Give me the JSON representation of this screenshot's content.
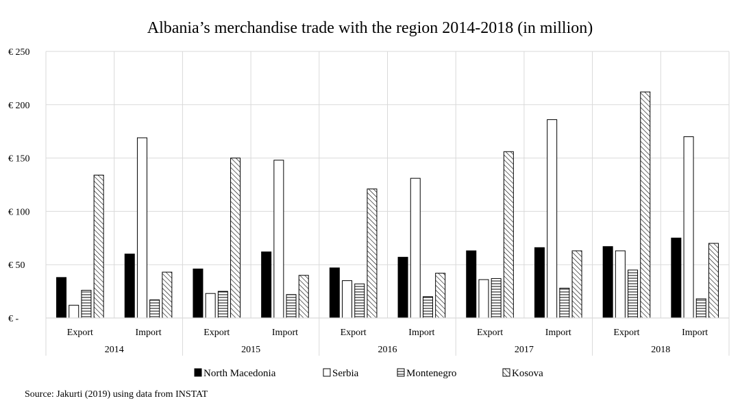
{
  "chart_data": {
    "type": "bar",
    "title": "Albania’s merchandise trade with the region 2014-2018 (in million)",
    "y_ticks": [
      "€ -",
      "€ 50",
      "€ 100",
      "€ 150",
      "€ 200",
      "€ 250"
    ],
    "ylim": [
      0,
      250
    ],
    "grid": true,
    "legend_position": "bottom",
    "groups": [
      "2014",
      "2015",
      "2016",
      "2017",
      "2018"
    ],
    "subcategories": [
      "Export",
      "Import"
    ],
    "categories": [
      "2014 Export",
      "2014 Import",
      "2015 Export",
      "2015 Import",
      "2016 Export",
      "2016 Import",
      "2017 Export",
      "2017 Import",
      "2018 Export",
      "2018 Import"
    ],
    "series": [
      {
        "name": "North Macedonia",
        "pattern": "solid",
        "values": [
          38,
          60,
          46,
          62,
          47,
          57,
          63,
          66,
          67,
          75
        ]
      },
      {
        "name": "Serbia",
        "pattern": "empty",
        "values": [
          12,
          169,
          23,
          148,
          35,
          131,
          36,
          186,
          63,
          170
        ]
      },
      {
        "name": "Montenegro",
        "pattern": "horizontal-lines",
        "values": [
          26,
          17,
          25,
          22,
          32,
          20,
          37,
          28,
          45,
          18
        ]
      },
      {
        "name": "Kosova",
        "pattern": "diagonal-hatch",
        "values": [
          134,
          43,
          150,
          40,
          121,
          42,
          156,
          63,
          212,
          70
        ]
      }
    ]
  },
  "colors": {
    "bar_fill": "#000000",
    "bar_outline": "#000000",
    "gridline": "#d9d9d9",
    "background": "#ffffff"
  },
  "source": "Source: Jakurti (2019) using data from INSTAT"
}
